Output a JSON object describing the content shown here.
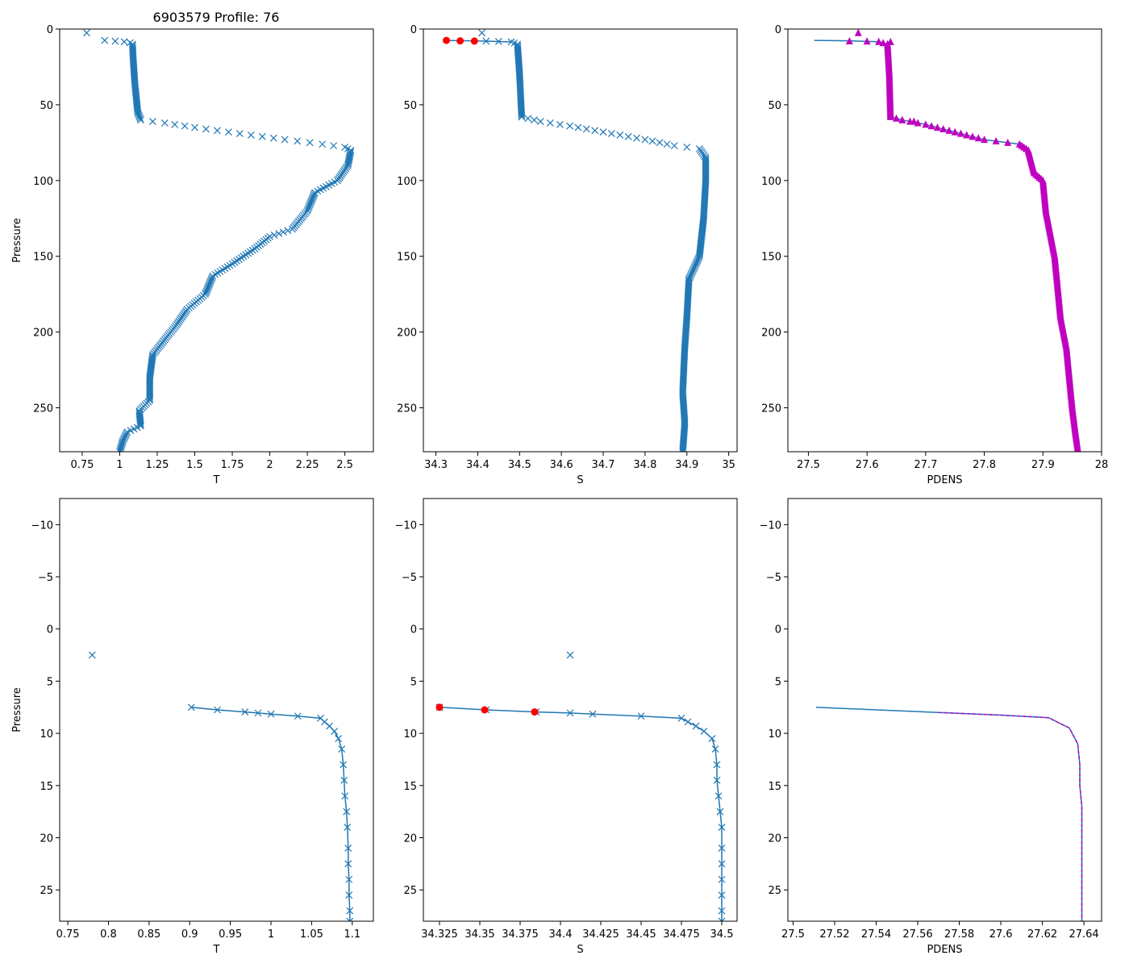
{
  "figure_title": "6903579 Profile: 76",
  "colors": {
    "line": "#1f77b4",
    "bad": "#ff0000",
    "density": "#bf00bf",
    "axes": "#000000"
  },
  "chart_data": [
    {
      "id": "top-T",
      "type": "scatter",
      "xlabel": "T",
      "ylabel": "Pressure",
      "xlim": [
        0.6,
        2.69
      ],
      "ylim": [
        279,
        0
      ],
      "xticks": [
        0.75,
        1.0,
        1.25,
        1.5,
        1.75,
        2.0,
        2.25,
        2.5
      ],
      "yticks": [
        0,
        50,
        100,
        150,
        200,
        250
      ],
      "marker": "x",
      "line": false,
      "series": [
        {
          "name": "T",
          "points": [
            [
              0.78,
              2.5
            ],
            [
              0.9,
              7.5
            ],
            [
              0.97,
              8
            ],
            [
              1.03,
              8.4
            ],
            [
              1.07,
              9
            ],
            [
              1.085,
              10
            ],
            [
              1.09,
              20
            ],
            [
              1.1,
              35
            ],
            [
              1.12,
              55
            ],
            [
              1.14,
              60
            ],
            [
              1.3,
              62
            ],
            [
              1.5,
              65
            ],
            [
              1.8,
              69
            ],
            [
              2.1,
              73
            ],
            [
              2.35,
              76
            ],
            [
              2.5,
              78
            ],
            [
              2.54,
              80
            ],
            [
              2.52,
              90
            ],
            [
              2.45,
              100
            ],
            [
              2.3,
              108
            ],
            [
              2.25,
              120
            ],
            [
              2.15,
              132
            ],
            [
              2.0,
              137
            ],
            [
              1.9,
              145
            ],
            [
              1.75,
              155
            ],
            [
              1.62,
              163
            ],
            [
              1.57,
              175
            ],
            [
              1.45,
              185
            ],
            [
              1.38,
              195
            ],
            [
              1.3,
              205
            ],
            [
              1.22,
              215
            ],
            [
              1.2,
              230
            ],
            [
              1.2,
              245
            ],
            [
              1.13,
              252
            ],
            [
              1.14,
              262
            ],
            [
              1.05,
              266
            ],
            [
              1.02,
              272
            ],
            [
              1.0,
              279
            ]
          ]
        }
      ]
    },
    {
      "id": "top-S",
      "type": "scatter",
      "xlabel": "S",
      "ylabel": "",
      "xlim": [
        34.27,
        35.02
      ],
      "ylim": [
        279,
        0
      ],
      "xticks": [
        34.3,
        34.4,
        34.5,
        34.6,
        34.7,
        34.8,
        34.9,
        35.0
      ],
      "yticks": [
        0,
        50,
        100,
        150,
        200,
        250
      ],
      "marker": "x",
      "line": false,
      "series": [
        {
          "name": "S",
          "points": [
            [
              34.41,
              2.5
            ],
            [
              34.42,
              8
            ],
            [
              34.45,
              8.2
            ],
            [
              34.48,
              8.5
            ],
            [
              34.495,
              10
            ],
            [
              34.5,
              30
            ],
            [
              34.505,
              58
            ],
            [
              34.55,
              61
            ],
            [
              34.62,
              64
            ],
            [
              34.7,
              68
            ],
            [
              34.8,
              73
            ],
            [
              34.87,
              77
            ],
            [
              34.93,
              79
            ],
            [
              34.945,
              85
            ],
            [
              34.945,
              100
            ],
            [
              34.94,
              125
            ],
            [
              34.93,
              150
            ],
            [
              34.905,
              165
            ],
            [
              34.9,
              190
            ],
            [
              34.895,
              210
            ],
            [
              34.89,
              240
            ],
            [
              34.895,
              260
            ],
            [
              34.89,
              279
            ]
          ]
        },
        {
          "name": "flagged",
          "points": [
            [
              34.325,
              7.5
            ],
            [
              34.358,
              7.8
            ],
            [
              34.392,
              7.95
            ]
          ]
        }
      ]
    },
    {
      "id": "top-PDENS",
      "type": "line",
      "xlabel": "PDENS",
      "ylabel": "",
      "xlim": [
        27.465,
        28.0
      ],
      "ylim": [
        279,
        0
      ],
      "xticks": [
        27.5,
        27.6,
        27.7,
        27.8,
        27.9,
        28.0
      ],
      "yticks": [
        0,
        50,
        100,
        150,
        200,
        250
      ],
      "series": [
        {
          "name": "PDENS",
          "points": [
            [
              27.51,
              7.5
            ],
            [
              27.57,
              7.8
            ],
            [
              27.62,
              8.4
            ],
            [
              27.635,
              10
            ],
            [
              27.638,
              30
            ],
            [
              27.64,
              58
            ],
            [
              27.66,
              60
            ],
            [
              27.7,
              63
            ],
            [
              27.75,
              68
            ],
            [
              27.8,
              73
            ],
            [
              27.86,
              76
            ],
            [
              27.875,
              80
            ],
            [
              27.885,
              95
            ],
            [
              27.9,
              100
            ],
            [
              27.905,
              120
            ],
            [
              27.915,
              140
            ],
            [
              27.92,
              150
            ],
            [
              27.925,
              170
            ],
            [
              27.93,
              190
            ],
            [
              27.94,
              210
            ],
            [
              27.945,
              230
            ],
            [
              27.95,
              250
            ],
            [
              27.955,
              265
            ],
            [
              27.96,
              279
            ]
          ]
        },
        {
          "name": "density-markers",
          "points": [
            [
              27.585,
              2.5
            ],
            [
              27.57,
              8
            ],
            [
              27.6,
              8.1
            ],
            [
              27.64,
              8.5
            ],
            [
              27.66,
              60
            ],
            [
              27.68,
              61
            ]
          ]
        }
      ]
    },
    {
      "id": "bottom-T",
      "type": "scatter",
      "xlabel": "T",
      "ylabel": "Pressure",
      "xlim": [
        0.74,
        1.126
      ],
      "ylim": [
        28,
        -12.5
      ],
      "xticks": [
        0.75,
        0.8,
        0.85,
        0.9,
        0.95,
        1.0,
        1.05,
        1.1
      ],
      "yticks": [
        -10,
        -5,
        0,
        5,
        10,
        15,
        20,
        25
      ],
      "marker": "x",
      "line": true,
      "series": [
        {
          "name": "T",
          "points": [
            [
              0.78,
              2.5
            ],
            [
              0.902,
              7.5
            ],
            [
              0.934,
              7.75
            ],
            [
              0.968,
              7.95
            ],
            [
              0.984,
              8.05
            ],
            [
              1.0,
              8.15
            ],
            [
              1.033,
              8.35
            ],
            [
              1.061,
              8.55
            ],
            [
              1.066,
              8.9
            ],
            [
              1.072,
              9.3
            ],
            [
              1.078,
              9.8
            ],
            [
              1.083,
              10.5
            ],
            [
              1.087,
              11.5
            ],
            [
              1.089,
              13
            ],
            [
              1.09,
              14.5
            ],
            [
              1.091,
              16
            ],
            [
              1.093,
              17.5
            ],
            [
              1.094,
              19
            ],
            [
              1.095,
              21
            ],
            [
              1.095,
              22.5
            ],
            [
              1.096,
              24
            ],
            [
              1.096,
              25.5
            ],
            [
              1.097,
              27
            ],
            [
              1.097,
              28
            ]
          ]
        }
      ]
    },
    {
      "id": "bottom-S",
      "type": "scatter",
      "xlabel": "S",
      "ylabel": "",
      "xlim": [
        34.315,
        34.5095
      ],
      "ylim": [
        28,
        -12.5
      ],
      "xticks": [
        34.325,
        34.35,
        34.375,
        34.4,
        34.425,
        34.45,
        34.475,
        34.5
      ],
      "yticks": [
        -10,
        -5,
        0,
        5,
        10,
        15,
        20,
        25
      ],
      "marker": "x",
      "line": true,
      "series": [
        {
          "name": "S",
          "points": [
            [
              34.406,
              2.5
            ],
            [
              34.325,
              7.5
            ],
            [
              34.354,
              7.75
            ],
            [
              34.385,
              7.95
            ],
            [
              34.406,
              8.05
            ],
            [
              34.42,
              8.15
            ],
            [
              34.45,
              8.35
            ],
            [
              34.475,
              8.55
            ],
            [
              34.479,
              8.9
            ],
            [
              34.484,
              9.3
            ],
            [
              34.489,
              9.8
            ],
            [
              34.494,
              10.5
            ],
            [
              34.496,
              11.5
            ],
            [
              34.497,
              13
            ],
            [
              34.497,
              14.5
            ],
            [
              34.498,
              16
            ],
            [
              34.499,
              17.5
            ],
            [
              34.5,
              19
            ],
            [
              34.5,
              21
            ],
            [
              34.5,
              22.5
            ],
            [
              34.5,
              24
            ],
            [
              34.5,
              25.5
            ],
            [
              34.5,
              27
            ],
            [
              34.5,
              28
            ]
          ]
        },
        {
          "name": "flagged",
          "points": [
            [
              34.325,
              7.5
            ],
            [
              34.353,
              7.75
            ],
            [
              34.384,
              7.95
            ]
          ]
        }
      ]
    },
    {
      "id": "bottom-PDENS",
      "type": "line",
      "xlabel": "PDENS",
      "ylabel": "",
      "xlim": [
        27.4975,
        27.6485
      ],
      "ylim": [
        28,
        -12.5
      ],
      "xticks": [
        27.5,
        27.52,
        27.54,
        27.56,
        27.58,
        27.6,
        27.62,
        27.64
      ],
      "yticks": [
        -10,
        -5,
        0,
        5,
        10,
        15,
        20,
        25
      ],
      "series": [
        {
          "name": "PDENS",
          "points": [
            [
              27.511,
              7.5
            ],
            [
              27.57,
              8.0
            ],
            [
              27.6,
              8.25
            ],
            [
              27.623,
              8.5
            ],
            [
              27.633,
              9.5
            ],
            [
              27.637,
              11
            ],
            [
              27.638,
              13
            ],
            [
              27.638,
              15
            ],
            [
              27.639,
              17
            ],
            [
              27.639,
              19
            ],
            [
              27.639,
              22
            ],
            [
              27.639,
              25
            ],
            [
              27.639,
              28
            ]
          ]
        },
        {
          "name": "PDENS-dashed",
          "points": [
            [
              27.57,
              8.0
            ],
            [
              27.6,
              8.25
            ],
            [
              27.623,
              8.5
            ],
            [
              27.633,
              9.5
            ],
            [
              27.637,
              11
            ],
            [
              27.638,
              13
            ],
            [
              27.638,
              15
            ],
            [
              27.639,
              17
            ],
            [
              27.639,
              19
            ],
            [
              27.639,
              22
            ],
            [
              27.639,
              25
            ],
            [
              27.639,
              28
            ]
          ]
        }
      ]
    }
  ]
}
